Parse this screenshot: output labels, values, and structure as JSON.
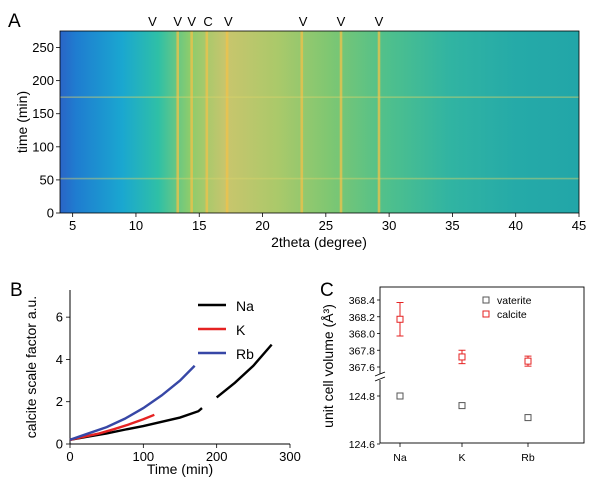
{
  "chart_data": [
    {
      "panel": "A",
      "type": "heatmap",
      "xlabel": "2theta (degree)",
      "ylabel": "time (min)",
      "xlim": [
        4,
        45
      ],
      "ylim": [
        0,
        275
      ],
      "xticks": [
        5,
        10,
        15,
        20,
        25,
        30,
        35,
        40,
        45
      ],
      "yticks": [
        0,
        50,
        100,
        150,
        200,
        250
      ],
      "peak_markers": [
        {
          "label": "V",
          "x": 11.3
        },
        {
          "label": "V",
          "x": 13.3
        },
        {
          "label": "V",
          "x": 14.4
        },
        {
          "label": "C",
          "x": 15.7
        },
        {
          "label": "V",
          "x": 17.3
        },
        {
          "label": "V",
          "x": 23.2
        },
        {
          "label": "V",
          "x": 26.2
        },
        {
          "label": "V",
          "x": 29.2
        }
      ],
      "bright_lines_2theta": [
        13.3,
        14.4,
        15.6,
        17.2,
        23.1,
        26.2,
        29.2
      ],
      "colormap": [
        "#2a64c6",
        "#1aa7d0",
        "#2fc0a6",
        "#8dcc6c",
        "#c9c56d"
      ]
    },
    {
      "panel": "B",
      "type": "line",
      "xlabel": "Time (min)",
      "ylabel": "calcite scale factor a.u.",
      "xlim": [
        0,
        300
      ],
      "ylim": [
        0,
        7
      ],
      "xticks": [
        0,
        100,
        200,
        300
      ],
      "yticks": [
        0,
        2,
        4,
        6
      ],
      "legend_position": "top-right",
      "series": [
        {
          "name": "Na",
          "color": "#000000",
          "x": [
            0,
            25,
            50,
            75,
            100,
            125,
            150,
            175,
            180,
            200,
            225,
            250,
            275
          ],
          "y": [
            0.2,
            0.35,
            0.5,
            0.68,
            0.85,
            1.05,
            1.25,
            1.55,
            1.7,
            2.2,
            2.9,
            3.7,
            4.7
          ]
        },
        {
          "name": "K",
          "color": "#e52222",
          "x": [
            0,
            20,
            40,
            60,
            80,
            100,
            115
          ],
          "y": [
            0.2,
            0.35,
            0.5,
            0.7,
            0.92,
            1.17,
            1.38
          ]
        },
        {
          "name": "Rb",
          "color": "#3747a6",
          "x": [
            0,
            25,
            50,
            75,
            100,
            125,
            150,
            170
          ],
          "y": [
            0.2,
            0.5,
            0.8,
            1.2,
            1.7,
            2.3,
            3.0,
            3.7
          ]
        }
      ]
    },
    {
      "panel": "C",
      "type": "scatter",
      "xlabel": "",
      "ylabel": "unit cell volume (Å³)",
      "categories": [
        "Na",
        "K",
        "Rb"
      ],
      "axis_break": true,
      "upper_yticks": [
        "368.4",
        "368.2",
        "368.0",
        "367.8",
        "367.6"
      ],
      "upper_ylim": [
        367.4,
        368.5
      ],
      "lower_yticks": [
        "124.8",
        "124.6"
      ],
      "lower_ylim": [
        124.6,
        124.88
      ],
      "legend_position": "top-right",
      "series": [
        {
          "name": "vaterite",
          "color": "#555555",
          "values": [
            124.8,
            124.76,
            124.71
          ],
          "errors": [
            0.005,
            0.005,
            0.005
          ],
          "axis": "lower"
        },
        {
          "name": "calcite",
          "color": "#e52222",
          "values": [
            368.17,
            367.72,
            367.67
          ],
          "errors": [
            0.2,
            0.08,
            0.06
          ],
          "axis": "upper"
        }
      ]
    }
  ],
  "panel_labels": {
    "a": "A",
    "b": "B",
    "c": "C"
  }
}
